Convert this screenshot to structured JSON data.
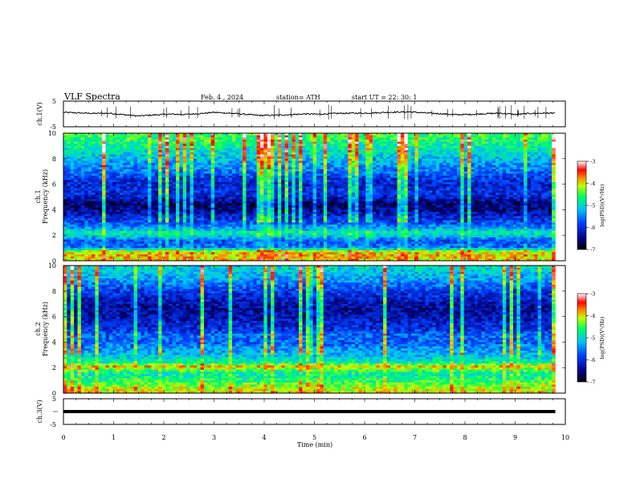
{
  "header": {
    "title": "VLF  Spectra",
    "date": "Feb. 4  , 2024",
    "station": "station= ATH",
    "start": "start  UT  =    22: 30: 1"
  },
  "chart_data": [
    {
      "type": "line",
      "name": "ch1-waveform",
      "ylabel": "ch.1(V)",
      "ylim": [
        -5,
        5
      ],
      "yticks": [
        "5",
        "-5"
      ],
      "x": [
        0,
        0.3,
        0.6,
        0.9,
        1.2,
        1.5,
        1.8,
        2.1,
        2.4,
        2.7,
        3.0,
        3.3,
        3.6,
        3.9,
        4.2,
        4.5,
        4.8,
        5.1,
        5.4,
        5.7,
        6.0,
        6.3,
        6.6,
        6.9,
        7.2,
        7.5,
        7.8,
        8.1,
        8.4,
        8.7,
        9.0,
        9.3,
        9.6,
        9.8
      ],
      "y": [
        0.6,
        0.4,
        0.2,
        0.3,
        -0.3,
        -0.8,
        -0.4,
        -0.1,
        -0.2,
        0.1,
        0.6,
        0.3,
        -0.1,
        -0.6,
        -0.5,
        -0.3,
        0.0,
        -0.1,
        0.2,
        0.3,
        0.3,
        0.5,
        0.7,
        0.8,
        0.4,
        0.1,
        -0.3,
        -0.2,
        0.1,
        0.3,
        -0.2,
        0.2,
        0.3,
        0.3
      ]
    },
    {
      "type": "heatmap",
      "name": "ch1-spectrogram",
      "ylabel": "ch.1\nFrequency (kHz)",
      "ylim": [
        0,
        10
      ],
      "yticks": [
        "0",
        "2",
        "4",
        "6",
        "8",
        "10"
      ],
      "xlim": [
        0,
        10
      ],
      "time_end": 9.8,
      "colorbar": {
        "label": "log(PSD)(V²/Hz)",
        "ticks": [
          "-3",
          "-4",
          "-5",
          "-6",
          "-7"
        ],
        "range": [
          -7,
          -3
        ]
      },
      "profile": [
        [
          0.0,
          -4.0
        ],
        [
          0.5,
          -3.9
        ],
        [
          0.8,
          -4.3
        ],
        [
          1.0,
          -5.5
        ],
        [
          1.5,
          -5.8
        ],
        [
          1.9,
          -5.2
        ],
        [
          2.2,
          -4.8
        ],
        [
          2.5,
          -5.3
        ],
        [
          3.0,
          -5.8
        ],
        [
          3.5,
          -6.1
        ],
        [
          4.0,
          -6.5
        ],
        [
          4.5,
          -6.6
        ],
        [
          5.0,
          -6.1
        ],
        [
          5.5,
          -6.0
        ],
        [
          6.0,
          -6.1
        ],
        [
          6.5,
          -5.9
        ],
        [
          7.0,
          -5.6
        ],
        [
          7.5,
          -5.4
        ],
        [
          8.0,
          -5.2
        ],
        [
          8.5,
          -5.0
        ],
        [
          9.0,
          -4.8
        ],
        [
          9.5,
          -4.6
        ],
        [
          10.0,
          -4.5
        ]
      ]
    },
    {
      "type": "heatmap",
      "name": "ch2-spectrogram",
      "ylabel": "ch.2\nFrequency (kHz)",
      "ylim": [
        0,
        10
      ],
      "yticks": [
        "0",
        "2",
        "4",
        "6",
        "8",
        "10"
      ],
      "xlim": [
        0,
        10
      ],
      "time_end": 9.8,
      "colorbar": {
        "label": "log(PSD)(V²/Hz)",
        "ticks": [
          "-3",
          "-4",
          "-5",
          "-6",
          "-7"
        ],
        "range": [
          -7,
          -3
        ]
      },
      "profile": [
        [
          0.0,
          -4.0
        ],
        [
          0.5,
          -4.2
        ],
        [
          1.0,
          -4.6
        ],
        [
          1.5,
          -4.9
        ],
        [
          1.9,
          -4.3
        ],
        [
          2.1,
          -3.9
        ],
        [
          2.4,
          -4.8
        ],
        [
          3.0,
          -5.2
        ],
        [
          3.5,
          -5.4
        ],
        [
          4.0,
          -5.7
        ],
        [
          4.5,
          -5.6
        ],
        [
          5.0,
          -6.0
        ],
        [
          5.5,
          -6.1
        ],
        [
          6.0,
          -6.3
        ],
        [
          6.5,
          -6.4
        ],
        [
          7.0,
          -6.3
        ],
        [
          7.5,
          -6.1
        ],
        [
          8.0,
          -5.9
        ],
        [
          8.5,
          -5.6
        ],
        [
          9.0,
          -5.3
        ],
        [
          9.5,
          -5.1
        ],
        [
          10.0,
          -5.0
        ]
      ]
    },
    {
      "type": "line",
      "name": "ch3-waveform",
      "ylabel": "ch.3(V)",
      "ylim": [
        -5,
        5
      ],
      "yticks": [
        "5",
        "0",
        "-5"
      ],
      "x": [
        0,
        9.8
      ],
      "y": [
        0,
        0
      ]
    }
  ],
  "xaxis": {
    "label": "Time  (min)",
    "ticks": [
      "0",
      "1",
      "2",
      "3",
      "4",
      "5",
      "6",
      "7",
      "8",
      "9",
      "10"
    ],
    "range": [
      0,
      10
    ]
  }
}
